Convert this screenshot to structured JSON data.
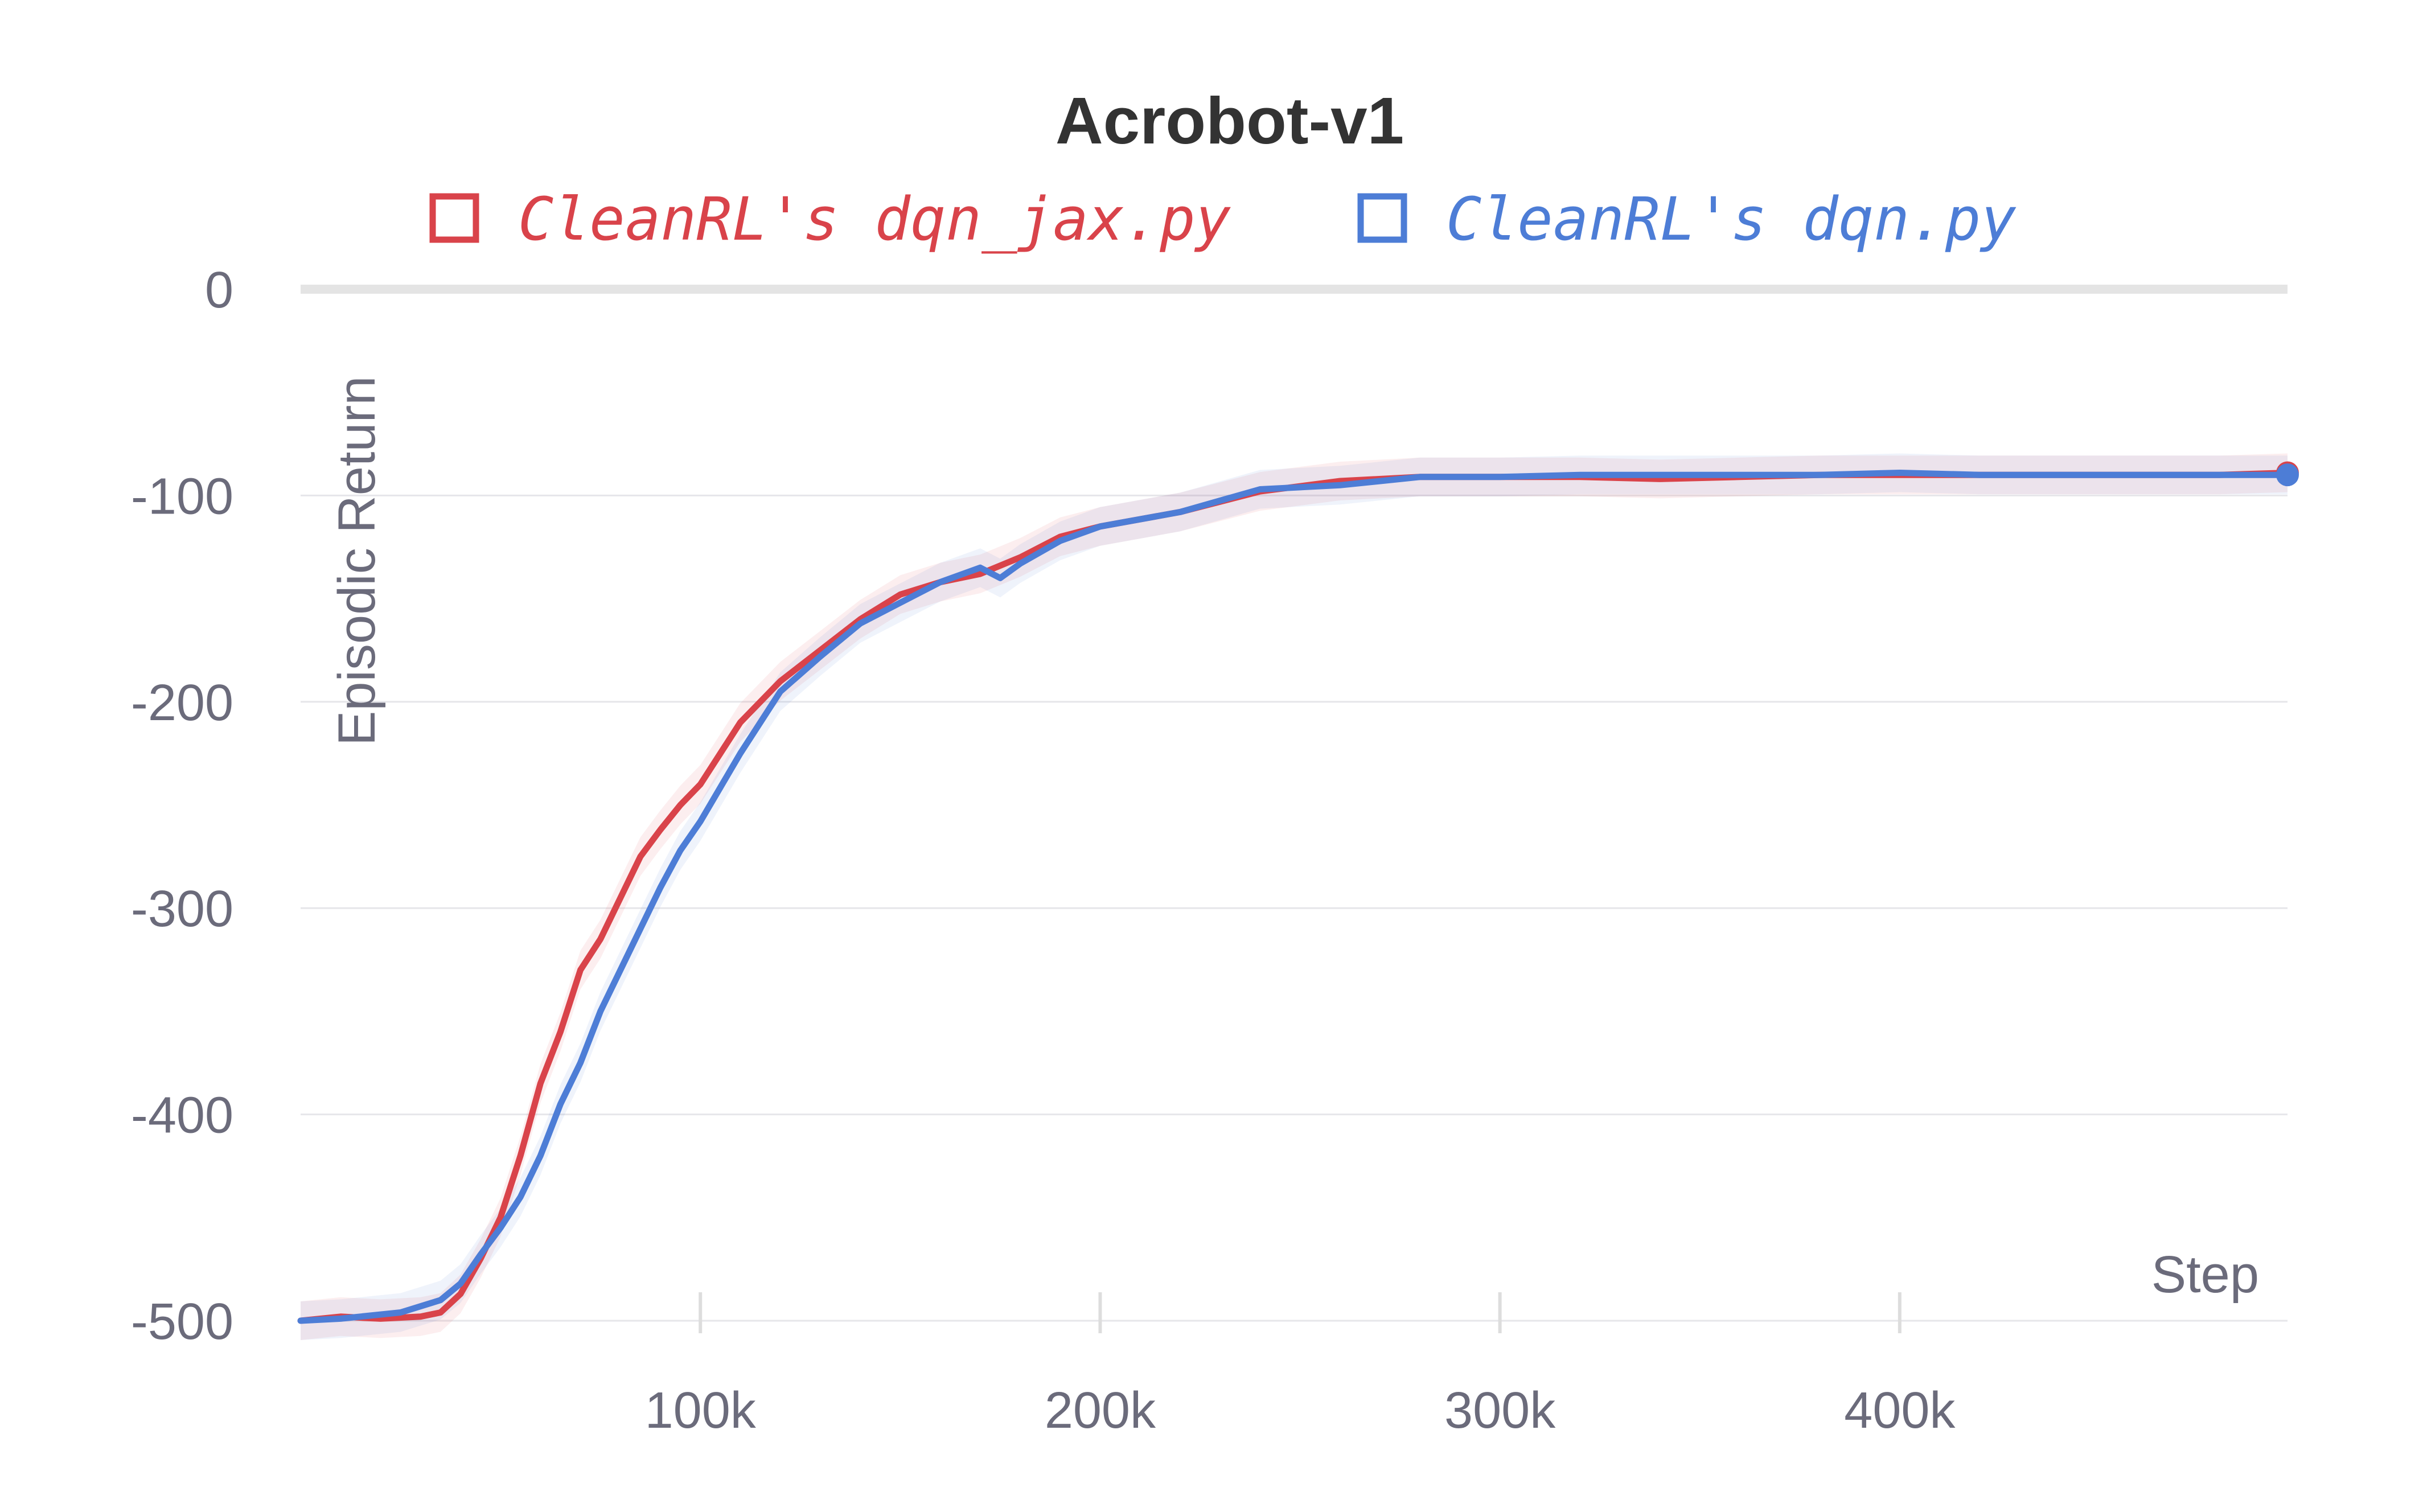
{
  "chart_data": {
    "type": "line",
    "title": "Acrobot-v1",
    "xlabel": "Step",
    "ylabel": "Episodic Return",
    "xlim": [
      0,
      497000
    ],
    "ylim": [
      -500,
      0
    ],
    "xticks": [
      100000,
      200000,
      300000,
      400000
    ],
    "xtick_labels": [
      "100k",
      "200k",
      "300k",
      "400k"
    ],
    "yticks": [
      0,
      -100,
      -200,
      -300,
      -400,
      -500
    ],
    "ytick_labels": [
      "0",
      "-100",
      "-200",
      "-300",
      "-400",
      "-500"
    ],
    "grid": true,
    "legend_position": "top-center",
    "series": [
      {
        "name": "CleanRL's dqn_jax.py",
        "color": "#d9434a",
        "x": [
          0,
          10000,
          20000,
          30000,
          35000,
          40000,
          45000,
          50000,
          55000,
          60000,
          65000,
          70000,
          75000,
          80000,
          85000,
          90000,
          95000,
          100000,
          110000,
          120000,
          130000,
          140000,
          150000,
          160000,
          170000,
          180000,
          190000,
          200000,
          220000,
          240000,
          260000,
          280000,
          300000,
          320000,
          340000,
          360000,
          380000,
          400000,
          420000,
          440000,
          460000,
          480000,
          497000
        ],
        "y": [
          -500,
          -498,
          -499,
          -498,
          -496,
          -487,
          -470,
          -450,
          -420,
          -385,
          -360,
          -330,
          -315,
          -295,
          -275,
          -262,
          -250,
          -240,
          -210,
          -190,
          -175,
          -160,
          -148,
          -142,
          -138,
          -130,
          -120,
          -115,
          -108,
          -98,
          -93,
          -91,
          -91,
          -91,
          -92,
          -91,
          -90,
          -90,
          -90,
          -90,
          -90,
          -90,
          -89
        ]
      },
      {
        "name": "CleanRL's dqn.py",
        "color": "#4d7dd6",
        "x": [
          0,
          10000,
          20000,
          25000,
          30000,
          35000,
          40000,
          45000,
          50000,
          55000,
          60000,
          65000,
          70000,
          75000,
          80000,
          85000,
          90000,
          95000,
          100000,
          110000,
          120000,
          130000,
          140000,
          150000,
          160000,
          170000,
          175000,
          180000,
          190000,
          200000,
          220000,
          240000,
          260000,
          280000,
          300000,
          320000,
          340000,
          360000,
          380000,
          400000,
          420000,
          440000,
          460000,
          480000,
          497000
        ],
        "y": [
          -500,
          -499,
          -497,
          -496,
          -493,
          -490,
          -482,
          -468,
          -455,
          -440,
          -420,
          -395,
          -375,
          -350,
          -330,
          -310,
          -290,
          -272,
          -258,
          -225,
          -195,
          -178,
          -162,
          -152,
          -142,
          -135,
          -140,
          -133,
          -122,
          -115,
          -108,
          -97,
          -95,
          -91,
          -91,
          -90,
          -90,
          -90,
          -90,
          -89,
          -90,
          -90,
          -90,
          -90,
          -90
        ]
      }
    ]
  }
}
